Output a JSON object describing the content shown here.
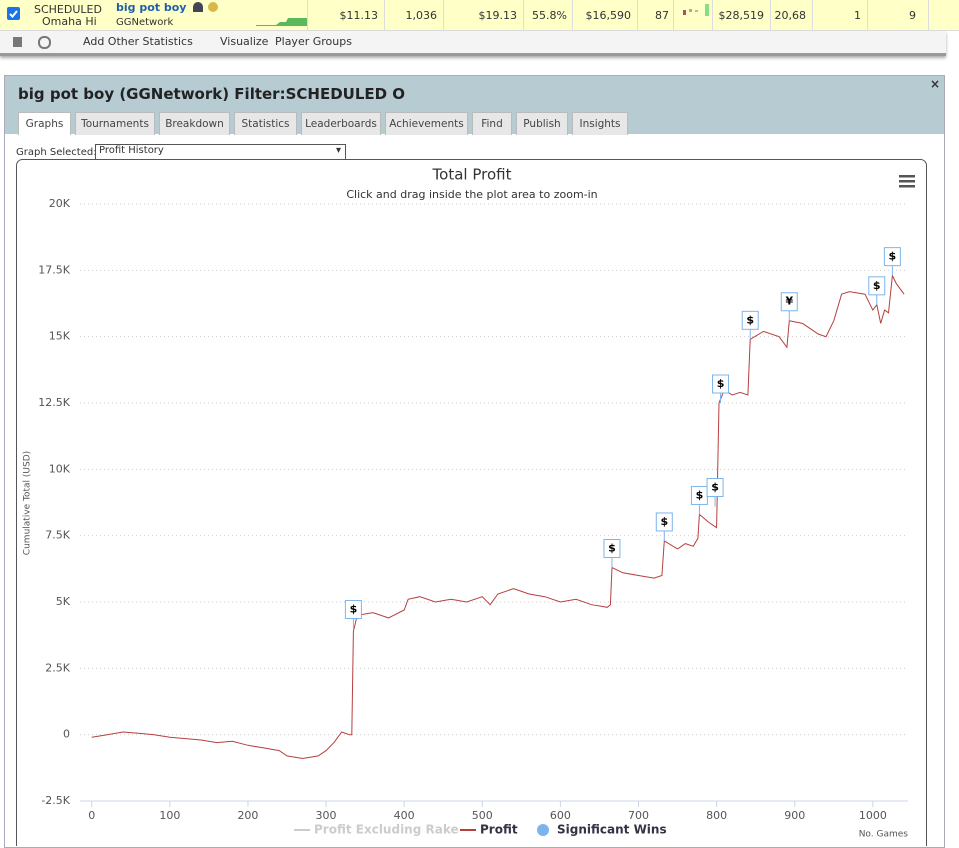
{
  "row": {
    "site": "SCHEDULED",
    "game": "Omaha Hi",
    "player": "big pot boy",
    "network": "GGNetwork",
    "stats": [
      "$11.13",
      "1,036",
      "$19.13",
      "55.8%",
      "$16,590",
      "87",
      "$28,519",
      "20,68",
      "1",
      "9"
    ]
  },
  "toolbar": {
    "add": "Add Other Statistics",
    "visualize": "Visualize",
    "groups": "Player Groups"
  },
  "panel": {
    "title": "big pot boy (GGNetwork) Filter:SCHEDULED O",
    "tabs": [
      "Graphs",
      "Tournaments",
      "Breakdown",
      "Statistics",
      "Leaderboards",
      "Achievements",
      "Find",
      "Publish",
      "Insights"
    ],
    "graph_label": "Graph Selected:",
    "graph_value": "Profit History"
  },
  "chart_data": {
    "type": "line",
    "title": "Total Profit",
    "subtitle": "Click and drag inside the plot area to zoom-in",
    "y_label": "Cumulative Total (USD)",
    "x_label": "No. Games",
    "xlim": [
      -15,
      1045
    ],
    "xticks": [
      0,
      100,
      200,
      300,
      400,
      500,
      600,
      700,
      800,
      900,
      1000
    ],
    "ylim": [
      -2500,
      20000
    ],
    "yticks": [
      {
        "value": -2500,
        "label": "-2.5K"
      },
      0,
      {
        "value": 2500,
        "label": "2.5K"
      },
      {
        "value": 5000,
        "label": "5K"
      },
      {
        "value": 7500,
        "label": "7.5K"
      },
      {
        "value": 10000,
        "label": "10K"
      },
      {
        "value": 12500,
        "label": "12.5K"
      },
      {
        "value": 15000,
        "label": "15K"
      },
      {
        "value": 17500,
        "label": "17.5K"
      },
      {
        "value": 20000,
        "label": "20K"
      }
    ],
    "grid": true,
    "series": [
      {
        "name": "Profit Excluding Rake",
        "color": "#cccccc"
      },
      {
        "name": "Profit",
        "color": "#b5403f",
        "x": [
          0,
          20,
          40,
          60,
          80,
          100,
          120,
          140,
          160,
          180,
          200,
          220,
          240,
          250,
          270,
          290,
          300,
          310,
          320,
          330,
          333,
          335,
          340,
          360,
          380,
          400,
          405,
          420,
          440,
          460,
          480,
          500,
          510,
          520,
          540,
          560,
          580,
          600,
          620,
          640,
          660,
          664,
          666,
          680,
          700,
          720,
          730,
          733,
          750,
          760,
          770,
          776,
          778,
          790,
          800,
          803,
          810,
          820,
          830,
          840,
          843,
          860,
          880,
          890,
          893,
          910,
          930,
          940,
          950,
          960,
          970,
          990,
          1000,
          1005,
          1010,
          1015,
          1020,
          1025,
          1030,
          1040
        ],
        "values": [
          -100,
          0,
          100,
          50,
          0,
          -100,
          -150,
          -200,
          -300,
          -250,
          -400,
          -500,
          -600,
          -800,
          -900,
          -800,
          -600,
          -300,
          100,
          0,
          0,
          3900,
          4500,
          4600,
          4400,
          4700,
          5100,
          5200,
          5000,
          5100,
          5000,
          5200,
          4900,
          5300,
          5500,
          5300,
          5200,
          5000,
          5100,
          4900,
          4800,
          4900,
          6300,
          6100,
          6000,
          5900,
          6000,
          7300,
          7000,
          7200,
          7100,
          7400,
          8300,
          8000,
          7800,
          12500,
          13000,
          12800,
          12900,
          12800,
          14900,
          15200,
          15000,
          14600,
          15600,
          15500,
          15100,
          15000,
          15600,
          16600,
          16700,
          16600,
          16000,
          16200,
          15500,
          16000,
          15900,
          17300,
          17000,
          16600
        ]
      },
      {
        "name": "Significant Wins",
        "color": "#7cb5ec",
        "x": [
          335,
          666,
          733,
          778,
          798,
          805,
          843,
          893,
          1005,
          1025
        ],
        "values": [
          4000,
          6300,
          7300,
          8300,
          8600,
          12500,
          14900,
          15600,
          16200,
          17300
        ],
        "labels": [
          "$",
          "$",
          "$",
          "$",
          "$",
          "$",
          "$",
          "¥",
          "$",
          "$"
        ]
      }
    ]
  }
}
